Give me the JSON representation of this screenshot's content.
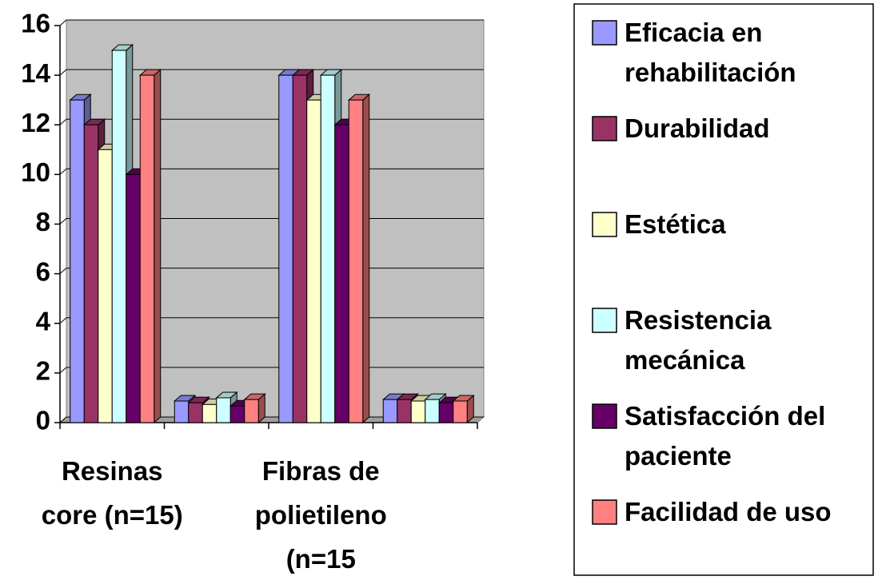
{
  "chart_data": {
    "type": "bar",
    "categories": [
      "Resinas core (n=15)",
      null,
      "Fibras de polietileno (n=15",
      null
    ],
    "series": [
      {
        "name": "Eficacia en rehabilitación",
        "color": "#9999ff",
        "values": [
          13,
          0.87,
          14,
          0.93
        ]
      },
      {
        "name": "Durabilidad",
        "color": "#993366",
        "values": [
          12,
          0.8,
          14,
          0.93
        ]
      },
      {
        "name": "Estética",
        "color": "#ffffcc",
        "values": [
          11,
          0.73,
          13,
          0.87
        ]
      },
      {
        "name": "Resistencia mecánica",
        "color": "#ccffff",
        "values": [
          15,
          1,
          14,
          0.93
        ]
      },
      {
        "name": "Satisfacción del paciente",
        "color": "#660066",
        "values": [
          10,
          0.67,
          12,
          0.8
        ]
      },
      {
        "name": "Facilidad de uso",
        "color": "#ff8080",
        "values": [
          14,
          0.93,
          13,
          0.87
        ]
      }
    ],
    "ylim": [
      0,
      16
    ],
    "yticks": [
      0,
      2,
      4,
      6,
      8,
      10,
      12,
      14,
      16
    ],
    "grid": true,
    "legend": "right"
  }
}
